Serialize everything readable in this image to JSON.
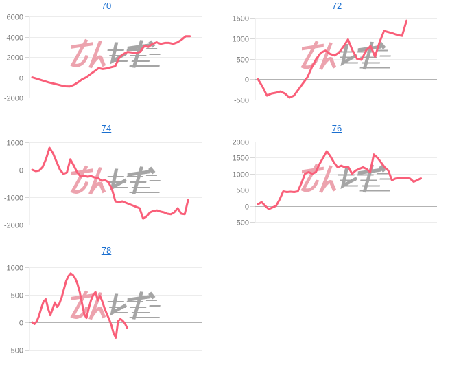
{
  "page": {
    "description": "Grid of five slump line charts identified by machine numbers, with site watermark",
    "background": "#ffffff"
  },
  "colors": {
    "line": "#f95f79",
    "title_link": "#1a6fd0",
    "tick_label": "#777777",
    "gridline": "#ececec",
    "zero_line": "#b3b3b3",
    "axis_border": "#e0e0e0",
    "tick_mark": "#d8d8d8",
    "watermark_pink": "#eca3ae",
    "watermark_gray": "#a5a5a5"
  },
  "watermark": {
    "text": "みんレポ"
  },
  "chart_data": [
    {
      "type": "line",
      "title": "70",
      "ylim": [
        -2000,
        6000
      ],
      "yticks": [
        6000,
        4000,
        2000,
        0,
        -2000
      ],
      "grid": true,
      "legend": false,
      "x_fraction": 0.93,
      "values": [
        0,
        -120,
        -250,
        -380,
        -500,
        -600,
        -700,
        -800,
        -880,
        -900,
        -750,
        -500,
        -200,
        0,
        300,
        600,
        900,
        820,
        880,
        1000,
        1100,
        1950,
        2300,
        2500,
        2450,
        2400,
        2500,
        3100,
        3000,
        3300,
        3450,
        3300,
        3400,
        3400,
        3300,
        3450,
        3700,
        4050,
        4050
      ]
    },
    {
      "type": "line",
      "title": "72",
      "ylim": [
        -500,
        1500
      ],
      "yticks": [
        1500,
        1000,
        500,
        0,
        -500
      ],
      "grid": true,
      "legend": false,
      "x_fraction": 0.83,
      "values": [
        0,
        -180,
        -400,
        -350,
        -330,
        -300,
        -350,
        -450,
        -400,
        -250,
        -100,
        50,
        300,
        500,
        650,
        700,
        620,
        580,
        650,
        800,
        970,
        700,
        500,
        475,
        700,
        810,
        550,
        900,
        1180,
        1150,
        1120,
        1080,
        1060,
        1430
      ]
    },
    {
      "type": "line",
      "title": "74",
      "ylim": [
        -2000,
        1000
      ],
      "yticks": [
        1000,
        0,
        -1000,
        -2000
      ],
      "grid": true,
      "legend": false,
      "x_fraction": 0.92,
      "values": [
        0,
        -50,
        -30,
        100,
        400,
        800,
        600,
        300,
        0,
        -150,
        -100,
        380,
        150,
        -100,
        -250,
        -220,
        -250,
        -230,
        -280,
        -300,
        -400,
        -380,
        -450,
        -700,
        -1150,
        -1180,
        -1150,
        -1200,
        -1250,
        -1300,
        -1350,
        -1400,
        -1780,
        -1700,
        -1550,
        -1500,
        -1480,
        -1520,
        -1550,
        -1600,
        -1620,
        -1550,
        -1400,
        -1600,
        -1620,
        -1100
      ]
    },
    {
      "type": "line",
      "title": "76",
      "ylim": [
        -500,
        2000
      ],
      "yticks": [
        2000,
        1500,
        1000,
        500,
        0,
        -500
      ],
      "grid": true,
      "legend": false,
      "x_fraction": 0.91,
      "values": [
        50,
        120,
        0,
        -100,
        -50,
        0,
        200,
        450,
        430,
        440,
        430,
        450,
        700,
        1000,
        1050,
        1000,
        1050,
        1300,
        1500,
        1700,
        1550,
        1350,
        1200,
        1250,
        1200,
        1200,
        1000,
        1100,
        1150,
        1200,
        1150,
        1050,
        1600,
        1500,
        1350,
        1200,
        1100,
        800,
        850,
        870,
        860,
        870,
        850,
        750,
        800,
        860
      ]
    },
    {
      "type": "line",
      "title": "78",
      "ylim": [
        -500,
        1000
      ],
      "yticks": [
        1000,
        500,
        0,
        -500
      ],
      "grid": true,
      "legend": false,
      "x_fraction": 0.56,
      "values": [
        0,
        -30,
        20,
        120,
        260,
        380,
        420,
        250,
        130,
        240,
        360,
        280,
        340,
        450,
        600,
        750,
        840,
        890,
        860,
        800,
        700,
        550,
        350,
        150,
        80,
        250,
        400,
        500,
        550,
        400,
        480,
        380,
        255,
        150,
        60,
        -50,
        -200,
        -280,
        20,
        60,
        30,
        -20,
        -100
      ]
    }
  ]
}
